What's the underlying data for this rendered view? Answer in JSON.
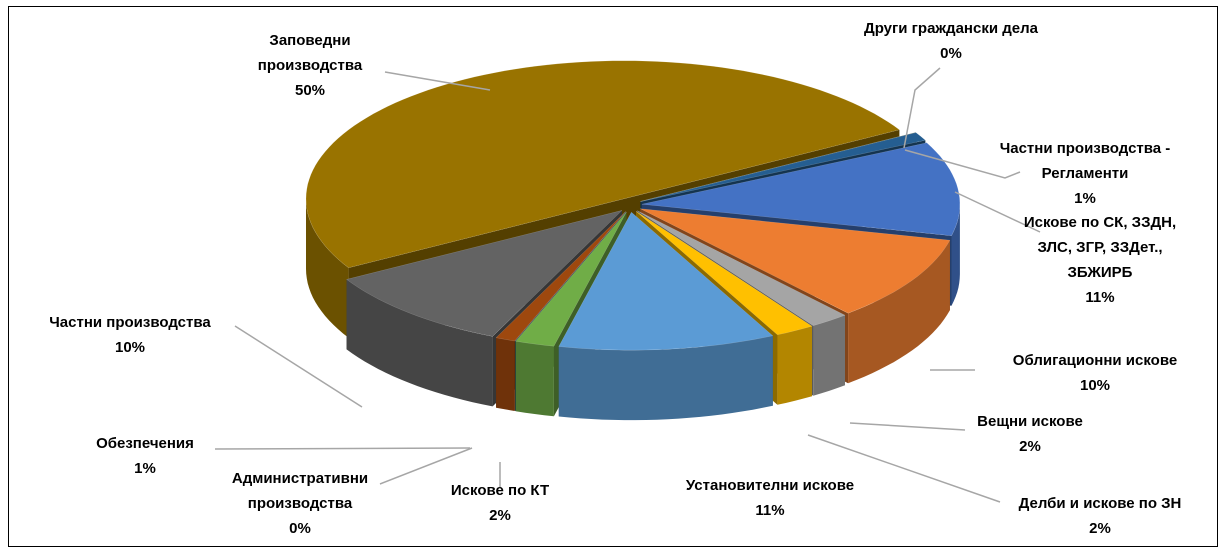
{
  "chart_data": {
    "type": "pie",
    "categories": [
      "Други граждански дела",
      "Частни производства - Регламенти",
      "Искове по СК, ЗЗДН, ЗЛС, ЗГР, ЗЗДет., ЗБЖИРБ",
      "Облигационни искове",
      "Вещни искове",
      "Делби и искове по ЗН",
      "Установителни искове",
      "Искове по КТ",
      "Административни производства",
      "Обезпечения",
      "Частни производства",
      "Заповедни производства"
    ],
    "values": [
      0,
      1,
      11,
      10,
      2,
      2,
      11,
      2,
      0,
      1,
      10,
      50
    ],
    "value_labels": [
      "0%",
      "1%",
      "11%",
      "10%",
      "2%",
      "2%",
      "11%",
      "2%",
      "0%",
      "1%",
      "10%",
      "50%"
    ],
    "colors": [
      "#43682b",
      "#255e91",
      "#4472c4",
      "#ed7d31",
      "#a5a5a5",
      "#ffc000",
      "#5b9bd5",
      "#70ad47",
      "#264478",
      "#9e480e",
      "#636363",
      "#997300"
    ]
  }
}
